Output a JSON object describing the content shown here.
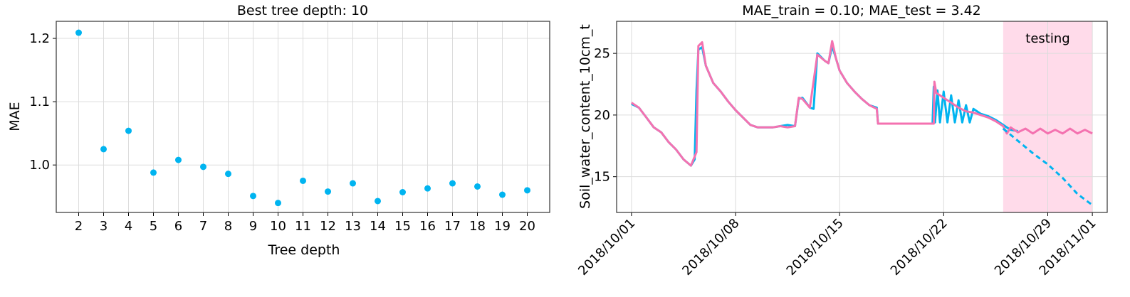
{
  "chart_data": [
    {
      "type": "scatter",
      "title": "Best tree depth: 10",
      "xlabel": "Tree depth",
      "ylabel": "MAE",
      "xlim": [
        1.1,
        20.9
      ],
      "ylim": [
        0.925,
        1.227
      ],
      "xticks": [
        2,
        3,
        4,
        5,
        6,
        7,
        8,
        9,
        10,
        11,
        12,
        13,
        14,
        15,
        16,
        17,
        18,
        19,
        20
      ],
      "yticks": [
        1.0,
        1.1,
        1.2
      ],
      "ytick_labels": [
        "1.0",
        "1.1",
        "1.2"
      ],
      "grid": true,
      "color": "#00b4f0",
      "series": [
        {
          "x": [
            2,
            3,
            4,
            5,
            6,
            7,
            8,
            9,
            10,
            11,
            12,
            13,
            14,
            15,
            16,
            17,
            18,
            19,
            20
          ],
          "y": [
            1.209,
            1.025,
            1.054,
            0.988,
            1.008,
            0.997,
            0.986,
            0.951,
            0.94,
            0.975,
            0.958,
            0.971,
            0.943,
            0.957,
            0.963,
            0.971,
            0.966,
            0.953,
            0.96
          ]
        }
      ]
    },
    {
      "type": "line",
      "title": "MAE_train = 0.10; MAE_test = 3.42",
      "xlabel": "",
      "ylabel": "Soil_water_content_10cm_t",
      "xlim": [
        "2018-09-30",
        "2018-11-02"
      ],
      "ylim": [
        12.1,
        27.6
      ],
      "xticks": [
        "2018-10-01",
        "2018-10-08",
        "2018-10-15",
        "2018-10-22",
        "2018-10-29",
        "2018-11-01"
      ],
      "xtick_labels": [
        "2018/10/01",
        "2018/10/08",
        "2018/10/15",
        "2018/10/22",
        "2018/10/29",
        "2018/11/01"
      ],
      "yticks": [
        15,
        20,
        25
      ],
      "ytick_labels": [
        "15",
        "20",
        "25"
      ],
      "grid": true,
      "testing_region": {
        "start": "2018-10-26",
        "end": "2018-11-01",
        "label": "testing",
        "color": "#ffdbea",
        "label_color": "#f472b0"
      },
      "series": [
        {
          "color": "#00b4f0",
          "style": "solid",
          "points": [
            [
              "2018-10-01",
              20.9
            ],
            [
              "2018-10-01T12:00",
              20.6
            ],
            [
              "2018-10-02",
              19.8
            ],
            [
              "2018-10-02T12:00",
              19.0
            ],
            [
              "2018-10-03",
              18.6
            ],
            [
              "2018-10-03T12:00",
              17.8
            ],
            [
              "2018-10-04",
              17.2
            ],
            [
              "2018-10-04T12:00",
              16.4
            ],
            [
              "2018-10-05",
              15.9
            ],
            [
              "2018-10-05T06:00",
              16.4
            ],
            [
              "2018-10-05T09:00",
              22.0
            ],
            [
              "2018-10-05T12:00",
              25.3
            ],
            [
              "2018-10-05T18:00",
              25.5
            ],
            [
              "2018-10-06",
              24.0
            ],
            [
              "2018-10-06T12:00",
              22.6
            ],
            [
              "2018-10-07",
              21.9
            ],
            [
              "2018-10-07T12:00",
              21.1
            ],
            [
              "2018-10-08",
              20.4
            ],
            [
              "2018-10-08T12:00",
              19.8
            ],
            [
              "2018-10-09",
              19.2
            ],
            [
              "2018-10-09T12:00",
              19.0
            ],
            [
              "2018-10-10",
              19.0
            ],
            [
              "2018-10-10T12:00",
              19.0
            ],
            [
              "2018-10-11",
              19.1
            ],
            [
              "2018-10-11T12:00",
              19.2
            ],
            [
              "2018-10-12",
              19.1
            ],
            [
              "2018-10-12T06:00",
              21.3
            ],
            [
              "2018-10-12T12:00",
              21.4
            ],
            [
              "2018-10-13",
              20.6
            ],
            [
              "2018-10-13T06:00",
              20.5
            ],
            [
              "2018-10-13T12:00",
              25.0
            ],
            [
              "2018-10-14",
              24.4
            ],
            [
              "2018-10-14T06:00",
              24.2
            ],
            [
              "2018-10-14T12:00",
              25.6
            ],
            [
              "2018-10-14T18:00",
              24.6
            ],
            [
              "2018-10-15",
              23.6
            ],
            [
              "2018-10-15T12:00",
              22.6
            ],
            [
              "2018-10-16",
              21.9
            ],
            [
              "2018-10-16T12:00",
              21.3
            ],
            [
              "2018-10-17",
              20.8
            ],
            [
              "2018-10-17T12:00",
              20.6
            ],
            [
              "2018-10-17T14:00",
              19.3
            ],
            [
              "2018-10-19",
              19.3
            ],
            [
              "2018-10-21",
              19.3
            ],
            [
              "2018-10-21T06:00",
              19.3
            ],
            [
              "2018-10-21T08:00",
              22.3
            ],
            [
              "2018-10-21T10:00",
              19.4
            ],
            [
              "2018-10-21T14:00",
              22.0
            ],
            [
              "2018-10-21T18:00",
              19.4
            ],
            [
              "2018-10-22",
              21.9
            ],
            [
              "2018-10-22T06:00",
              19.4
            ],
            [
              "2018-10-22T12:00",
              21.6
            ],
            [
              "2018-10-22T18:00",
              19.4
            ],
            [
              "2018-10-23",
              21.2
            ],
            [
              "2018-10-23T06:00",
              19.4
            ],
            [
              "2018-10-23T12:00",
              20.8
            ],
            [
              "2018-10-23T18:00",
              19.4
            ],
            [
              "2018-10-24",
              20.5
            ],
            [
              "2018-10-24T12:00",
              20.1
            ],
            [
              "2018-10-25",
              19.9
            ],
            [
              "2018-10-25T12:00",
              19.6
            ],
            [
              "2018-10-26",
              19.2
            ],
            [
              "2018-10-26T12:00",
              18.8
            ],
            [
              "2018-10-27",
              18.7
            ]
          ]
        },
        {
          "color": "#f472b0",
          "style": "solid",
          "points": [
            [
              "2018-10-01",
              21.0
            ],
            [
              "2018-10-01T12:00",
              20.6
            ],
            [
              "2018-10-02",
              19.8
            ],
            [
              "2018-10-02T12:00",
              19.0
            ],
            [
              "2018-10-03",
              18.6
            ],
            [
              "2018-10-03T12:00",
              17.8
            ],
            [
              "2018-10-04",
              17.2
            ],
            [
              "2018-10-04T12:00",
              16.4
            ],
            [
              "2018-10-05",
              15.9
            ],
            [
              "2018-10-05T09:00",
              17.0
            ],
            [
              "2018-10-05T12:00",
              25.6
            ],
            [
              "2018-10-05T18:00",
              25.9
            ],
            [
              "2018-10-06",
              24.0
            ],
            [
              "2018-10-06T12:00",
              22.6
            ],
            [
              "2018-10-07",
              21.9
            ],
            [
              "2018-10-07T12:00",
              21.1
            ],
            [
              "2018-10-08",
              20.4
            ],
            [
              "2018-10-08T12:00",
              19.8
            ],
            [
              "2018-10-09",
              19.2
            ],
            [
              "2018-10-09T12:00",
              19.0
            ],
            [
              "2018-10-10",
              19.0
            ],
            [
              "2018-10-10T12:00",
              19.0
            ],
            [
              "2018-10-11",
              19.1
            ],
            [
              "2018-10-11T12:00",
              19.0
            ],
            [
              "2018-10-12",
              19.1
            ],
            [
              "2018-10-12T06:00",
              21.4
            ],
            [
              "2018-10-12T12:00",
              21.3
            ],
            [
              "2018-10-13",
              20.6
            ],
            [
              "2018-10-13T12:00",
              24.9
            ],
            [
              "2018-10-14",
              24.4
            ],
            [
              "2018-10-14T06:00",
              24.2
            ],
            [
              "2018-10-14T12:00",
              26.0
            ],
            [
              "2018-10-14T18:00",
              24.6
            ],
            [
              "2018-10-15",
              23.6
            ],
            [
              "2018-10-15T12:00",
              22.6
            ],
            [
              "2018-10-16",
              21.9
            ],
            [
              "2018-10-16T12:00",
              21.3
            ],
            [
              "2018-10-17",
              20.8
            ],
            [
              "2018-10-17T12:00",
              20.5
            ],
            [
              "2018-10-17T14:00",
              19.3
            ],
            [
              "2018-10-19",
              19.3
            ],
            [
              "2018-10-21",
              19.3
            ],
            [
              "2018-10-21T08:00",
              19.3
            ],
            [
              "2018-10-21T09:00",
              22.7
            ],
            [
              "2018-10-21T12:00",
              21.8
            ],
            [
              "2018-10-22",
              21.4
            ],
            [
              "2018-10-22T12:00",
              21.0
            ],
            [
              "2018-10-23",
              20.6
            ],
            [
              "2018-10-23T12:00",
              20.3
            ],
            [
              "2018-10-24",
              20.2
            ],
            [
              "2018-10-24T12:00",
              20.0
            ],
            [
              "2018-10-25",
              19.8
            ],
            [
              "2018-10-25T12:00",
              19.5
            ],
            [
              "2018-10-26",
              19.1
            ],
            [
              "2018-10-26T06:00",
              18.5
            ],
            [
              "2018-10-26T12:00",
              19.0
            ],
            [
              "2018-10-27",
              18.6
            ],
            [
              "2018-10-27T12:00",
              18.9
            ],
            [
              "2018-10-28",
              18.5
            ],
            [
              "2018-10-28T12:00",
              18.9
            ],
            [
              "2018-10-29",
              18.5
            ],
            [
              "2018-10-29T12:00",
              18.8
            ],
            [
              "2018-10-30",
              18.5
            ],
            [
              "2018-10-30T12:00",
              18.9
            ],
            [
              "2018-10-31",
              18.5
            ],
            [
              "2018-10-31T12:00",
              18.8
            ],
            [
              "2018-11-01",
              18.5
            ]
          ]
        },
        {
          "color": "#00b4f0",
          "style": "dashed",
          "points": [
            [
              "2018-10-26",
              18.9
            ],
            [
              "2018-10-27",
              17.9
            ],
            [
              "2018-10-28",
              16.9
            ],
            [
              "2018-10-29",
              16.0
            ],
            [
              "2018-10-30",
              14.9
            ],
            [
              "2018-10-31",
              13.6
            ],
            [
              "2018-11-01",
              12.7
            ]
          ]
        }
      ]
    }
  ]
}
